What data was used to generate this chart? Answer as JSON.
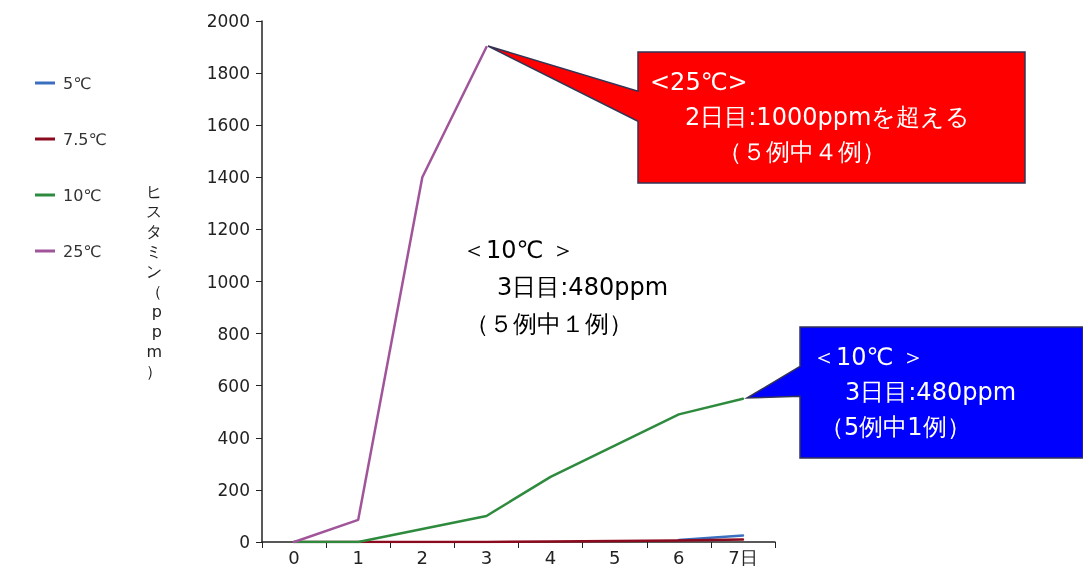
{
  "chart_data": {
    "type": "line",
    "ylabel": "ヒスタミン（ppm）",
    "categories": [
      "0",
      "1",
      "2",
      "3",
      "4",
      "5",
      "6",
      "7日"
    ],
    "series": [
      {
        "name": "5℃",
        "color": "#3a6fc0",
        "values": [
          null,
          null,
          null,
          null,
          null,
          null,
          8,
          25
        ]
      },
      {
        "name": "7.5℃",
        "color": "#8b0a1e",
        "values": [
          0,
          0,
          0,
          0,
          2,
          4,
          6,
          10
        ]
      },
      {
        "name": "10℃",
        "color": "#2e8b3e",
        "values": [
          0,
          0,
          50,
          100,
          250,
          370,
          490,
          550
        ]
      },
      {
        "name": "25℃",
        "color": "#a0559a",
        "values": [
          0,
          85,
          1400,
          1900,
          null,
          null,
          null,
          null
        ]
      }
    ],
    "ylim": [
      0,
      2000
    ],
    "yticks": [
      0,
      200,
      400,
      600,
      800,
      1000,
      1200,
      1400,
      1600,
      1800,
      2000
    ],
    "grid": false,
    "legend": "left",
    "marker": "none",
    "line_style": "solid",
    "annotations": [
      "<25℃>",
      "2日目:1000ppmを超える",
      "（５例中４例）",
      "＜10℃ ＞",
      "3日目:480ppm",
      "（５例中１例）",
      "＜10℃ ＞",
      "3日目:480ppm",
      "（5例中1例）"
    ]
  }
}
